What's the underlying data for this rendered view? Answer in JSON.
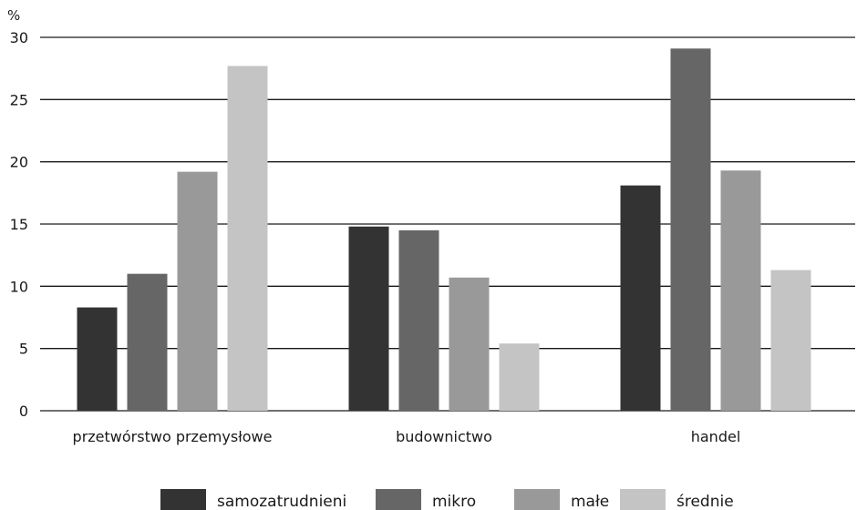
{
  "chart_data": {
    "type": "bar",
    "title": "",
    "ylabel": "%",
    "xlabel": "",
    "ylim": [
      0,
      30
    ],
    "yticks": [
      0,
      5,
      10,
      15,
      20,
      25,
      30
    ],
    "grid": true,
    "legend_position": "bottom",
    "categories": [
      "przetwórstwo przemysłowe",
      "budownictwo",
      "handel"
    ],
    "series": [
      {
        "name": "samozatrudnieni",
        "color": "#333333",
        "values": [
          8.3,
          14.8,
          18.1
        ]
      },
      {
        "name": "mikro",
        "color": "#666666",
        "values": [
          11.0,
          14.5,
          29.1
        ]
      },
      {
        "name": "małe",
        "color": "#999999",
        "values": [
          19.2,
          10.7,
          19.3
        ]
      },
      {
        "name": "średnie",
        "color": "#c4c4c4",
        "values": [
          27.7,
          5.4,
          11.3
        ]
      }
    ]
  }
}
